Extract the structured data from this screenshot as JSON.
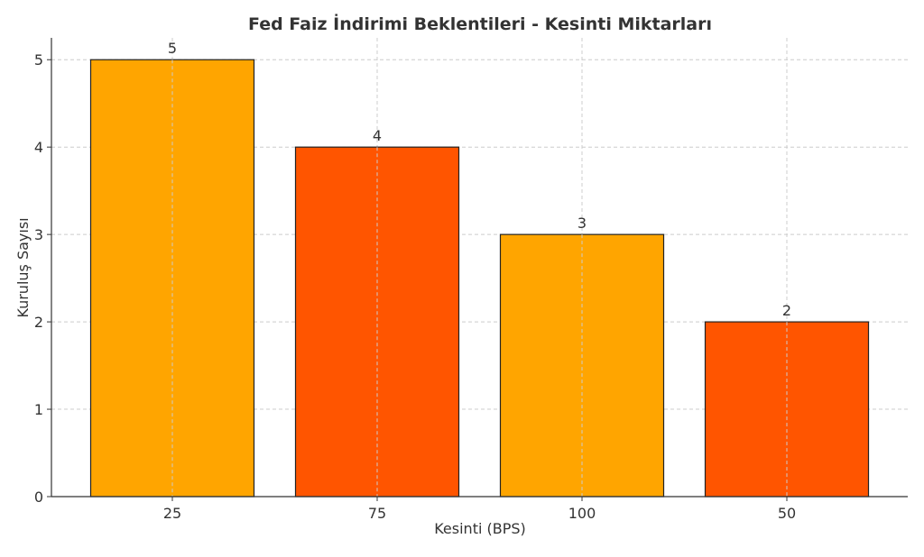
{
  "chart_data": {
    "type": "bar",
    "title": "Fed Faiz İndirimi Beklentileri - Kesinti Miktarları",
    "xlabel": "Kesinti (BPS)",
    "ylabel": "Kuruluş Sayısı",
    "categories": [
      "25",
      "75",
      "100",
      "50"
    ],
    "values": [
      5,
      4,
      3,
      2
    ],
    "bar_colors": [
      "#FFA500",
      "#FF5500",
      "#FFA500",
      "#FF5500"
    ],
    "ylim": [
      0,
      5.25
    ],
    "yticks": [
      0,
      1,
      2,
      3,
      4,
      5
    ],
    "grid": true,
    "data_labels": true
  }
}
